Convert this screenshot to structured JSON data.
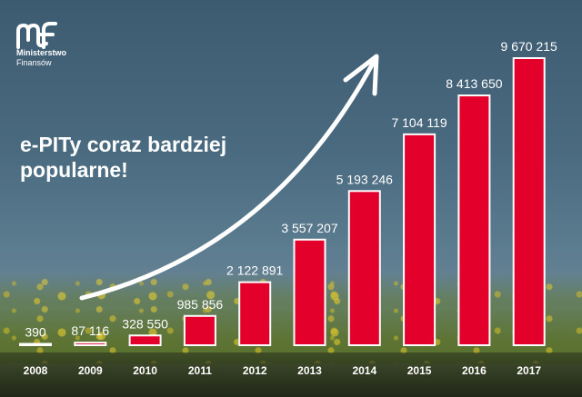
{
  "branding": {
    "org_line1": "Ministerstwo",
    "org_line2": "Finansów",
    "logo_icon": "mf-logo-icon"
  },
  "headline": {
    "line1": "e-PITy coraz bardziej",
    "line2": "popularne!"
  },
  "colors": {
    "bar_fill": "#e3002b",
    "bar_stroke": "#ffffff",
    "text": "#ffffff"
  },
  "chart_data": {
    "type": "bar",
    "categories": [
      "2008",
      "2009",
      "2010",
      "2011",
      "2012",
      "2013",
      "2014",
      "2015",
      "2016",
      "2017"
    ],
    "values": [
      390,
      87116,
      328550,
      985856,
      2122891,
      3557207,
      5193246,
      7104119,
      8413650,
      9670215
    ],
    "value_labels": [
      "390",
      "87 116",
      "328 550",
      "985 856",
      "2 122 891",
      "3 557 207",
      "5 193 246",
      "7 104 119",
      "8 413 650",
      "9 670 215"
    ],
    "title": "",
    "xlabel": "",
    "ylabel": "",
    "ylim": [
      0,
      10000000
    ],
    "grid": false,
    "legend": "none",
    "annotation": "upward trend arrow"
  }
}
